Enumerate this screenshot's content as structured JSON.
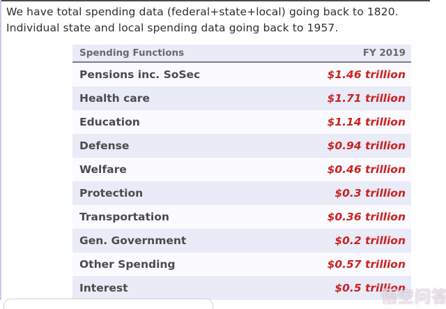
{
  "page": {
    "intro_line1": "We have total spending data (federal+state+local) going back to 1820.",
    "intro_line2": "Individual state and local spending data going back to 1957."
  },
  "table": {
    "columns": [
      "Spending Functions",
      "FY 2019"
    ],
    "rows": [
      {
        "label": "Pensions inc. SoSec",
        "value": "$1.46 trillion"
      },
      {
        "label": "Health care",
        "value": "$1.71 trillion"
      },
      {
        "label": "Education",
        "value": "$1.14 trillion"
      },
      {
        "label": "Defense",
        "value": "$0.94 trillion"
      },
      {
        "label": "Welfare",
        "value": "$0.46 trillion"
      },
      {
        "label": "Protection",
        "value": "$0.3 trillion"
      },
      {
        "label": "Transportation",
        "value": "$0.36 trillion"
      },
      {
        "label": "Gen. Government",
        "value": "$0.2 trillion"
      },
      {
        "label": "Other Spending",
        "value": "$0.57 trillion"
      },
      {
        "label": "Interest",
        "value": "$0.5 trillion"
      }
    ]
  },
  "watermark": {
    "text": "悟空问答"
  },
  "colors": {
    "value_red": "#cc2222",
    "row_alt_lavender": "#e9ebf7",
    "row_base": "#fafaff",
    "label_gray": "#4b4b4f",
    "header_gray": "#68686e",
    "header_underline": "#7d7d85",
    "top_border": "#4a4a4a",
    "left_border": "#c9c9e6"
  }
}
